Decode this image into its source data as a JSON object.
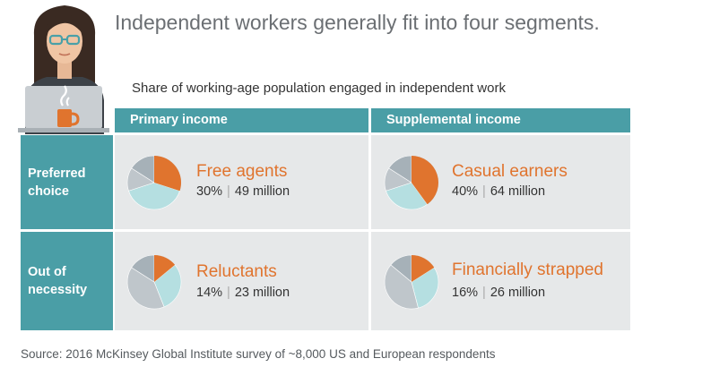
{
  "title": "Independent workers generally fit into four segments.",
  "subtitle": "Share of working-age population engaged in independent work",
  "columns": [
    "Primary income",
    "Supplemental income"
  ],
  "rows": [
    {
      "line1": "Preferred",
      "line2": "choice"
    },
    {
      "line1": "Out of",
      "line2": "necessity"
    }
  ],
  "source": "Source: 2016 McKinsey Global Institute survey of ~8,000 US and European respondents",
  "colors": {
    "teal": "#4a9ea6",
    "orange": "#e0742e",
    "pie_teal": "#b5dfe1",
    "pie_gray": "#bfc6cb",
    "pie_dark": "#a6b1b8",
    "cell": "#e6e8e9"
  },
  "chart_data": {
    "type": "pie",
    "segments": [
      {
        "name": "Free agents",
        "percent_label": "30%",
        "people_label": "49 million",
        "percent": 30,
        "people_millions": 49
      },
      {
        "name": "Casual earners",
        "percent_label": "40%",
        "people_label": "64 million",
        "percent": 40,
        "people_millions": 64
      },
      {
        "name": "Reluctants",
        "percent_label": "14%",
        "people_label": "23 million",
        "percent": 14,
        "people_millions": 23
      },
      {
        "name": "Financially strapped",
        "percent_label": "16%",
        "people_label": "26 million",
        "percent": 16,
        "people_millions": 26
      }
    ]
  }
}
